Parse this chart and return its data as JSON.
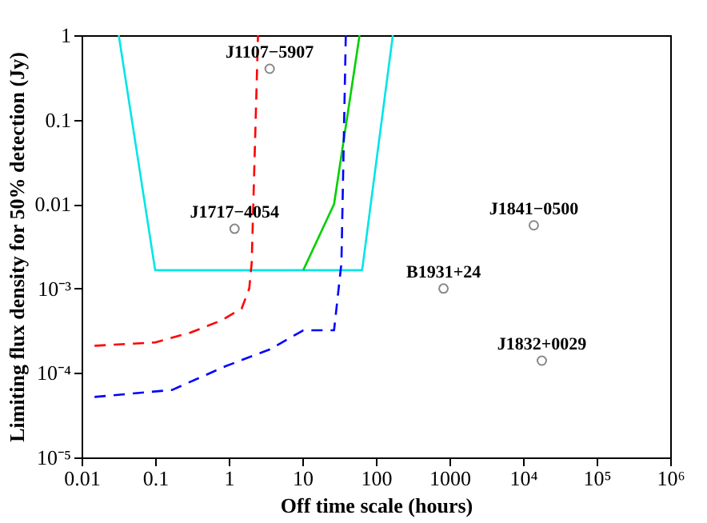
{
  "chart_data": {
    "type": "line",
    "xlabel": "Off time scale (hours)",
    "ylabel": "Limiting flux density for 50% detection (Jy)",
    "log": "xy",
    "grid": false,
    "xlim": [
      0.01,
      1000000
    ],
    "ylim": [
      1e-05,
      1
    ],
    "xticks": [
      0.01,
      0.1,
      1,
      10,
      100,
      1000,
      {
        "value": 10000,
        "label": "10⁴"
      },
      {
        "value": 100000,
        "label": "10⁵"
      },
      {
        "value": 1000000,
        "label": "10⁶"
      }
    ],
    "yticks": [
      {
        "value": 1e-05,
        "label": "10⁻⁵"
      },
      {
        "value": 0.0001,
        "label": "10⁻⁴"
      },
      {
        "value": 0.001,
        "label": "10⁻³"
      },
      0.01,
      0.1,
      1
    ],
    "series": [
      {
        "type": "line",
        "color": "#00e5e5",
        "line_style": "solid",
        "x": [
          0.032,
          0.1,
          65,
          170
        ],
        "values": [
          1,
          0.00165,
          0.00165,
          1
        ]
      },
      {
        "type": "line",
        "color": "#00d000",
        "line_style": "solid",
        "x": [
          10.3,
          27,
          60
        ],
        "values": [
          0.00165,
          0.01,
          1
        ]
      },
      {
        "type": "line",
        "color": "#ff0000",
        "line_style": "dashed",
        "x": [
          0.015,
          0.1,
          0.3,
          0.8,
          1.5,
          1.9,
          2.05,
          2.5
        ],
        "values": [
          0.00021,
          0.00023,
          0.0003,
          0.00042,
          0.00058,
          0.001,
          0.002,
          1
        ]
      },
      {
        "type": "line",
        "color": "#0000ff",
        "line_style": "dashed",
        "x": [
          0.015,
          0.17,
          0.9,
          3.6,
          10.3,
          27,
          34,
          39
        ],
        "values": [
          5.2e-05,
          6.3e-05,
          0.00012,
          0.00019,
          0.00032,
          0.00032,
          0.002,
          1
        ]
      },
      {
        "type": "scatter",
        "marker": "circle",
        "color": "#555555",
        "x": [
          3.6,
          1.2,
          14000,
          830,
          18000
        ],
        "values": [
          0.4,
          0.0051,
          0.0056,
          0.001,
          0.00014
        ]
      }
    ],
    "annotations": [
      {
        "text": "J1107−5907",
        "x": 3.6,
        "y": 0.4
      },
      {
        "text": "J1717−4054",
        "x": 1.2,
        "y": 0.0051
      },
      {
        "text": "J1841−0500",
        "x": 14000,
        "y": 0.0056
      },
      {
        "text": "B1931+24",
        "x": 830,
        "y": 0.001
      },
      {
        "text": "J1832+0029",
        "x": 18000,
        "y": 0.00014
      }
    ]
  }
}
